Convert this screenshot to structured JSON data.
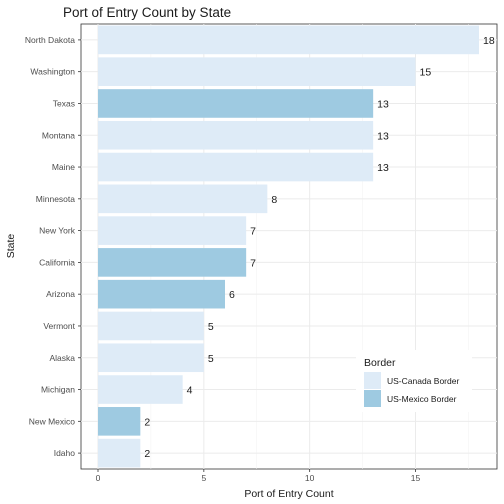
{
  "chart_data": {
    "type": "bar",
    "orientation": "horizontal",
    "title": "Port of Entry Count by State",
    "xlabel": "Port of Entry Count",
    "ylabel": "State",
    "xlim": [
      0,
      18
    ],
    "xticks": [
      0,
      5,
      10,
      15
    ],
    "grid": true,
    "legend_position": "right",
    "legend_title": "Border",
    "categories": [
      "North Dakota",
      "Washington",
      "Texas",
      "Montana",
      "Maine",
      "Minnesota",
      "New York",
      "California",
      "Arizona",
      "Vermont",
      "Alaska",
      "Michigan",
      "New Mexico",
      "Idaho"
    ],
    "values": [
      18,
      15,
      13,
      13,
      13,
      8,
      7,
      7,
      6,
      5,
      5,
      4,
      2,
      2
    ],
    "groups": [
      "US-Canada Border",
      "US-Canada Border",
      "US-Mexico Border",
      "US-Canada Border",
      "US-Canada Border",
      "US-Canada Border",
      "US-Canada Border",
      "US-Mexico Border",
      "US-Mexico Border",
      "US-Canada Border",
      "US-Canada Border",
      "US-Canada Border",
      "US-Mexico Border",
      "US-Canada Border"
    ],
    "series": [
      {
        "name": "US-Canada Border",
        "color": "#deebf7"
      },
      {
        "name": "US-Mexico Border",
        "color": "#9ecae1"
      }
    ]
  }
}
